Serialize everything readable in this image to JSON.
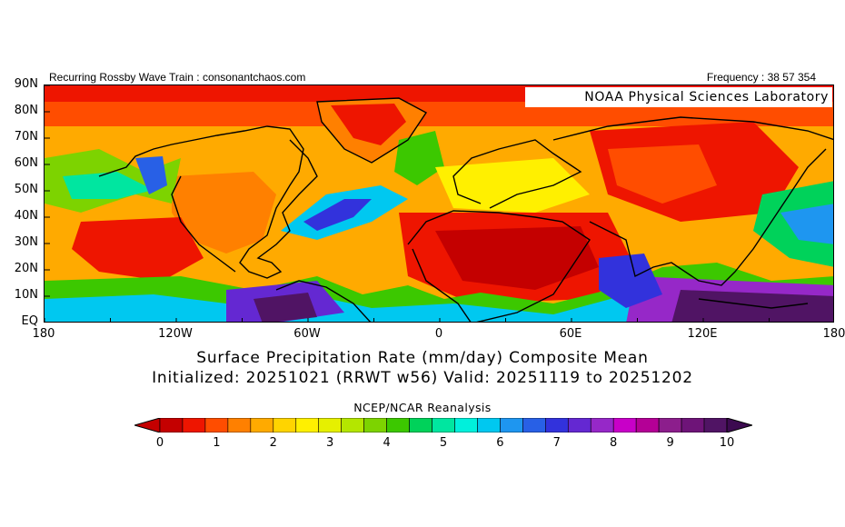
{
  "header": {
    "left": "Recurring Rossby Wave Train : consonantchaos.com",
    "right": "Frequency : 38 57 354"
  },
  "map": {
    "credit": "NOAA Physical Sciences Laboratory",
    "lat_labels": [
      "90N",
      "80N",
      "70N",
      "60N",
      "50N",
      "40N",
      "30N",
      "20N",
      "10N",
      "EQ"
    ],
    "lon_labels": [
      "180",
      "120W",
      "60W",
      "0",
      "60E",
      "120E",
      "180"
    ],
    "ocean_fill_level": 1.5
  },
  "titles": {
    "line1": "Surface Precipitation Rate (mm/day) Composite Mean",
    "line2": "Initialized: 20251021 (RRWT w56) Valid: 20251119 to 20251202",
    "subtitle": "NCEP/NCAR Reanalysis"
  },
  "colorbar": {
    "labels": [
      "0",
      "1",
      "2",
      "3",
      "4",
      "5",
      "6",
      "7",
      "8",
      "9",
      "10"
    ],
    "colors": [
      "#c40000",
      "#ee1500",
      "#ff4d00",
      "#ff8000",
      "#ffaa00",
      "#ffd400",
      "#fff000",
      "#e6f000",
      "#b4e600",
      "#7dd300",
      "#3cc800",
      "#00d25a",
      "#00e6a0",
      "#00f0dc",
      "#00c8f0",
      "#1e96f0",
      "#2860e6",
      "#3232dc",
      "#6428d2",
      "#9628c8",
      "#c800c8",
      "#b40096",
      "#8c1e8c",
      "#6e1478",
      "#501464"
    ],
    "over_color": "#3c0a50"
  }
}
